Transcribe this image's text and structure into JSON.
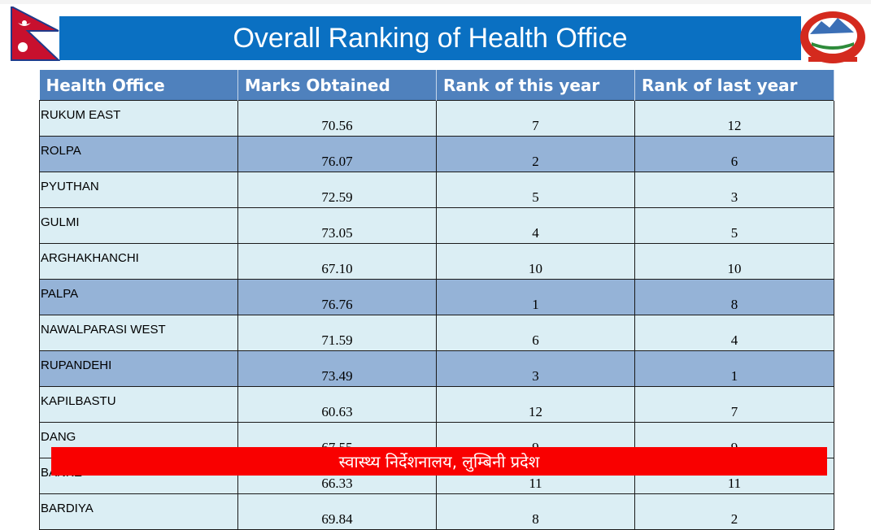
{
  "header": {
    "title": "Overall Ranking of Health Office",
    "flag_icon": "nepal-flag",
    "emblem_icon": "nepal-emblem"
  },
  "colors": {
    "title_bar": "#0a70c2",
    "header_row": "#4f81bd",
    "row": "#dbeef4",
    "highlight_row": "#95b3d7",
    "footer": "#f90000"
  },
  "table": {
    "columns": [
      "Health Office",
      "Marks Obtained",
      "Rank of this year",
      "Rank of last year"
    ],
    "rows": [
      {
        "office": "RUKUM EAST",
        "marks": "70.56",
        "rank_this": "7",
        "rank_last": "12",
        "highlighted": false
      },
      {
        "office": "ROLPA",
        "marks": "76.07",
        "rank_this": "2",
        "rank_last": "6",
        "highlighted": true
      },
      {
        "office": "PYUTHAN",
        "marks": "72.59",
        "rank_this": "5",
        "rank_last": "3",
        "highlighted": false
      },
      {
        "office": "GULMI",
        "marks": "73.05",
        "rank_this": "4",
        "rank_last": "5",
        "highlighted": false
      },
      {
        "office": "ARGHAKHANCHI",
        "marks": "67.10",
        "rank_this": "10",
        "rank_last": "10",
        "highlighted": false
      },
      {
        "office": "PALPA",
        "marks": "76.76",
        "rank_this": "1",
        "rank_last": "8",
        "highlighted": true
      },
      {
        "office": "NAWALPARASI WEST",
        "marks": "71.59",
        "rank_this": "6",
        "rank_last": "4",
        "highlighted": false
      },
      {
        "office": "RUPANDEHI",
        "marks": "73.49",
        "rank_this": "3",
        "rank_last": "1",
        "highlighted": true
      },
      {
        "office": "KAPILBASTU",
        "marks": "60.63",
        "rank_this": "12",
        "rank_last": "7",
        "highlighted": false
      },
      {
        "office": "DANG",
        "marks": "67.55",
        "rank_this": "9",
        "rank_last": "9",
        "highlighted": false
      },
      {
        "office": "BANKE",
        "marks": "66.33",
        "rank_this": "11",
        "rank_last": "11",
        "highlighted": false
      },
      {
        "office": "BARDIYA",
        "marks": "69.84",
        "rank_this": "8",
        "rank_last": "2",
        "highlighted": false
      }
    ]
  },
  "footer": {
    "text": "स्वास्थ्य निर्देशनालय, लुम्बिनी प्रदेश"
  }
}
